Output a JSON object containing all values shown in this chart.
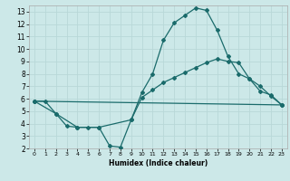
{
  "title": "",
  "xlabel": "Humidex (Indice chaleur)",
  "bg_color": "#cce8e8",
  "grid_color": "#b8d8d8",
  "line_color": "#1a6b6b",
  "xlim": [
    -0.5,
    23.5
  ],
  "ylim": [
    2,
    13.5
  ],
  "xticks": [
    0,
    1,
    2,
    3,
    4,
    5,
    6,
    7,
    8,
    9,
    10,
    11,
    12,
    13,
    14,
    15,
    16,
    17,
    18,
    19,
    20,
    21,
    22,
    23
  ],
  "yticks": [
    2,
    3,
    4,
    5,
    6,
    7,
    8,
    9,
    10,
    11,
    12,
    13
  ],
  "line1_x": [
    0,
    1,
    2,
    3,
    4,
    5,
    6,
    7,
    8,
    9,
    10,
    11,
    12,
    13,
    14,
    15,
    16,
    17,
    18,
    19,
    20,
    21,
    22,
    23
  ],
  "line1_y": [
    5.8,
    5.8,
    4.8,
    3.8,
    3.7,
    3.7,
    3.7,
    2.2,
    2.1,
    4.3,
    6.5,
    8.0,
    10.7,
    12.1,
    12.7,
    13.3,
    13.1,
    11.5,
    9.4,
    8.0,
    7.6,
    7.0,
    6.2,
    5.5
  ],
  "line2_x": [
    0,
    2,
    4,
    6,
    9,
    10,
    11,
    12,
    13,
    14,
    15,
    16,
    17,
    18,
    19,
    20,
    21,
    22,
    23
  ],
  "line2_y": [
    5.8,
    4.8,
    3.7,
    3.7,
    4.3,
    6.1,
    6.7,
    7.3,
    7.7,
    8.1,
    8.5,
    8.9,
    9.2,
    9.0,
    8.9,
    7.6,
    6.6,
    6.3,
    5.5
  ],
  "line3_x": [
    0,
    23
  ],
  "line3_y": [
    5.8,
    5.5
  ]
}
